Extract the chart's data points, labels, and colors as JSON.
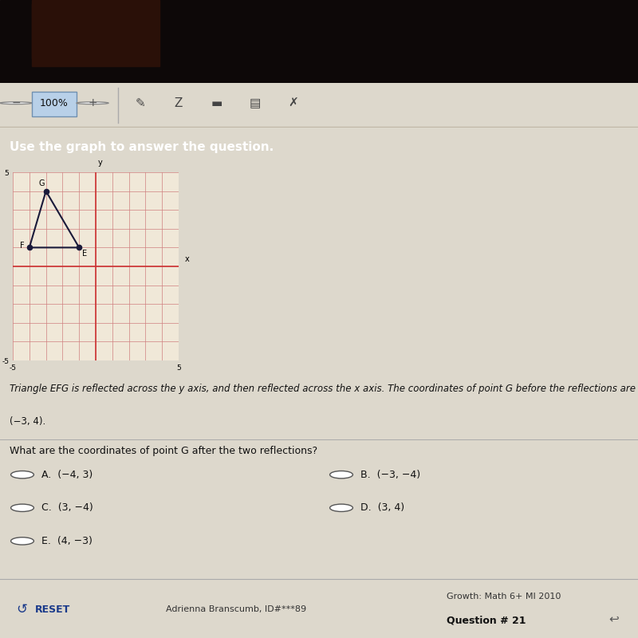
{
  "dark_top_color": "#1a0a08",
  "toolbar_bg": "#e8e0d0",
  "toolbar_border": "#c0b8a8",
  "banner_color": "#2b4a7a",
  "banner_text": "Use the graph to answer the question.",
  "banner_text_color": "#ffffff",
  "banner_fontsize": 11,
  "graph_bg": "#f0e8d8",
  "graph_border_color": "#888888",
  "grid_color": "#d08080",
  "grid_linewidth": 0.5,
  "axis_color": "#cc3333",
  "axis_linewidth": 1.2,
  "triangle_E": [
    -1,
    1
  ],
  "triangle_F": [
    -4,
    1
  ],
  "triangle_G": [
    -3,
    4
  ],
  "triangle_color": "#1a1a3a",
  "triangle_linewidth": 1.5,
  "vertex_dot_size": 20,
  "label_fontsize": 7,
  "body_bg": "#ddd8cc",
  "body_text_color": "#111111",
  "problem_line1": "Triangle EFG is reflected across the y axis, and then reflected across the x axis. The coordinates of point G before the reflections are",
  "problem_line2": "(−3, 4).",
  "question_text": "What are the coordinates of point G after the two reflections?",
  "options_left": [
    {
      "label": "A.",
      "text": "(−4, 3)"
    },
    {
      "label": "C.",
      "text": "(3, −4)"
    },
    {
      "label": "E.",
      "text": "(4, −3)"
    }
  ],
  "options_right": [
    {
      "label": "B.",
      "text": "(−3, −4)"
    },
    {
      "label": "D.",
      "text": "(3, 4)"
    }
  ],
  "separator_color": "#aaaaaa",
  "footer_bg": "#ccc8bc",
  "footer_text_left": "RESET",
  "footer_reset_color": "#1a3a8a",
  "footer_center": "Adrienna Branscumb, ID#***89",
  "footer_right1": "Growth: Math 6+ MI 2010",
  "footer_right2": "Question # 21",
  "footer_fontsize": 8
}
